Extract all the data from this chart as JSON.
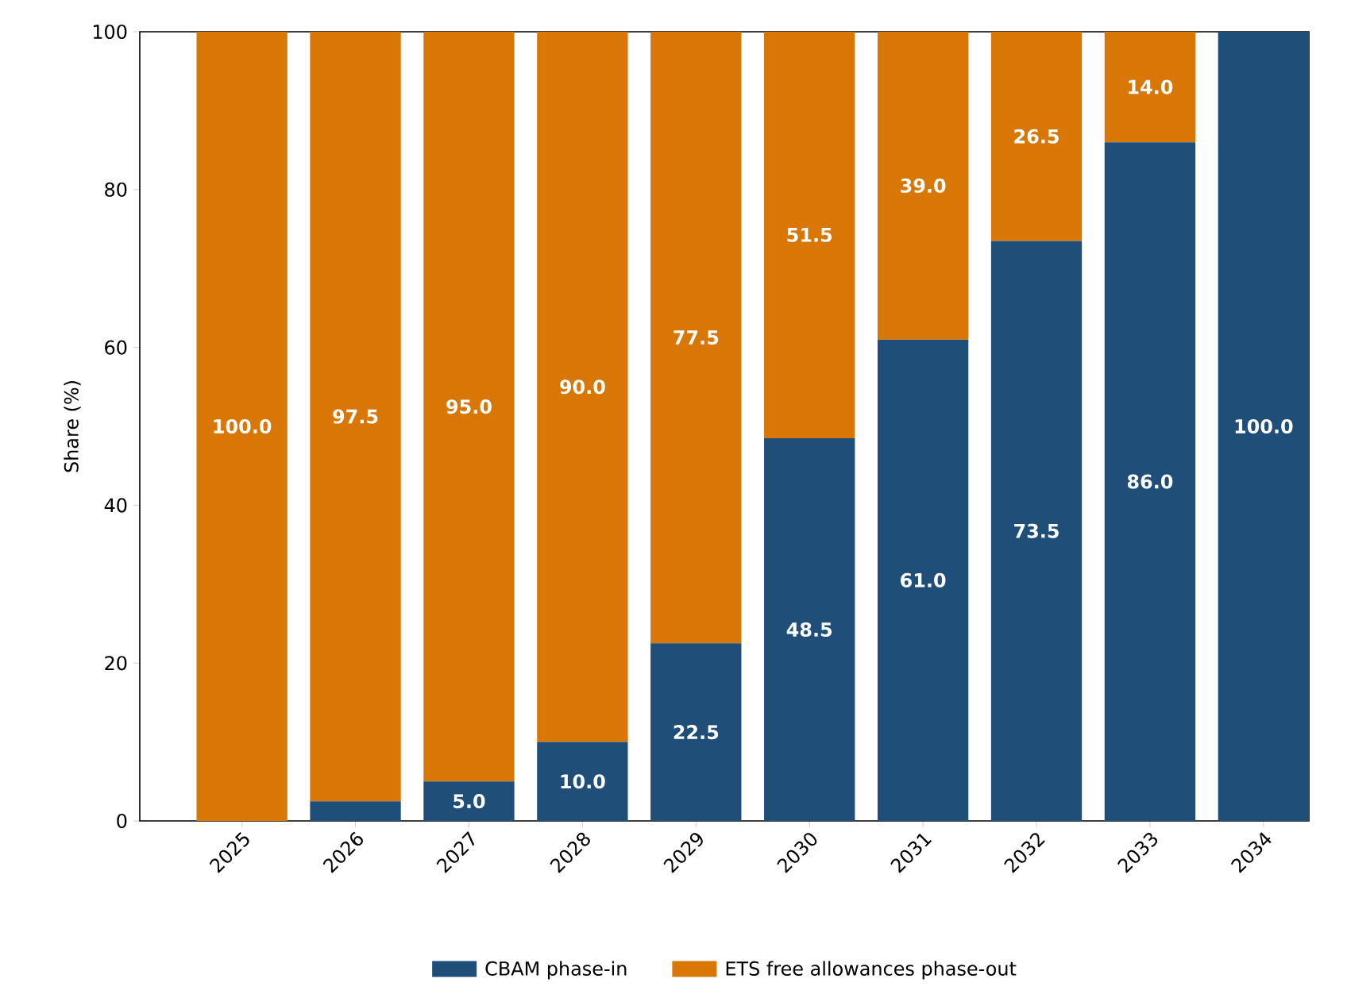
{
  "chart_data": {
    "type": "bar",
    "stacked": true,
    "ylabel": "Share (%)",
    "categories": [
      "2025",
      "2026",
      "2027",
      "2028",
      "2029",
      "2030",
      "2031",
      "2032",
      "2033",
      "2034"
    ],
    "ylim": [
      0,
      100
    ],
    "yticks": [
      0,
      20,
      40,
      60,
      80,
      100
    ],
    "legend": "bottom",
    "series": [
      {
        "name": "CBAM phase-in",
        "color": "#1f4e79",
        "values": [
          0,
          2.5,
          5,
          10,
          22.5,
          48.5,
          61,
          73.5,
          86,
          100
        ],
        "value_labels": [
          null,
          null,
          "5.0",
          "10.0",
          "22.5",
          "48.5",
          "61.0",
          "73.5",
          "86.0",
          "100.0"
        ]
      },
      {
        "name": "ETS free allowances phase-out",
        "color": "#d97706",
        "values": [
          100,
          97.5,
          95,
          90,
          77.5,
          51.5,
          39,
          26.5,
          14,
          0
        ],
        "value_labels": [
          "100.0",
          "97.5",
          "95.0",
          "90.0",
          "77.5",
          "51.5",
          "39.0",
          "26.5",
          "14.0",
          null
        ]
      }
    ]
  }
}
